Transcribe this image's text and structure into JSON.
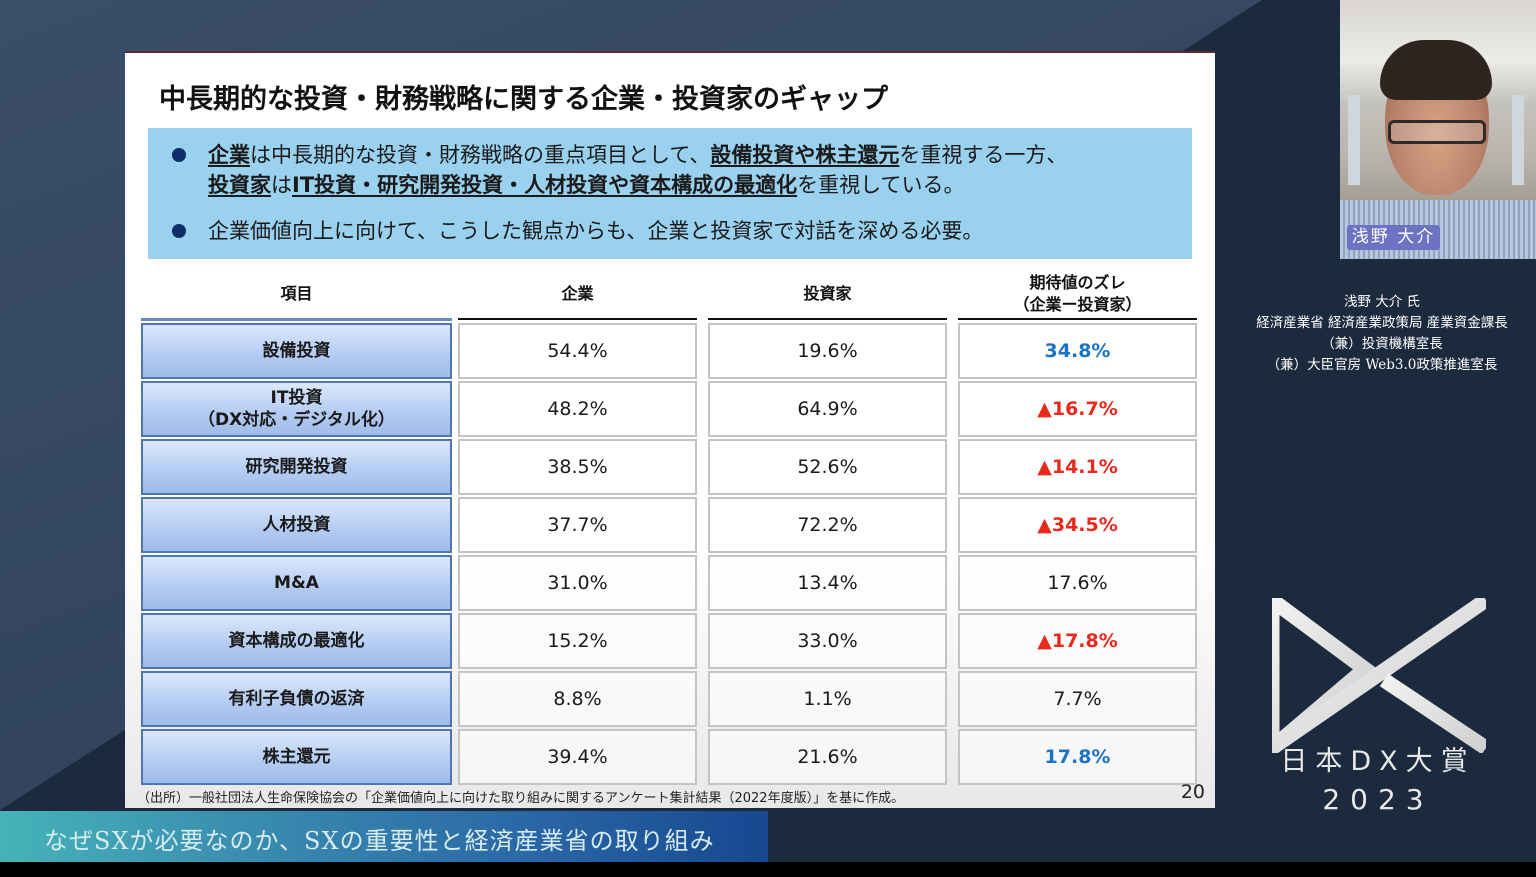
{
  "slide": {
    "title": "中長期的な投資・財務戦略に関する企業・投資家のギャップ",
    "summary": {
      "bullet1_part1": "企業",
      "bullet1_part2": "は中長期的な投資・財務戦略の重点項目として、",
      "bullet1_part3": "設備投資や株主還元",
      "bullet1_part4": "を重視する一方、",
      "bullet1_part5": "投資家",
      "bullet1_part6": "は",
      "bullet1_part7": "IT投資・研究開発投資・人材投資や資本構成の最適化",
      "bullet1_part8": "を重視している。",
      "bullet2": "企業価値向上に向けて、こうした観点からも、企業と投資家で対話を深める必要。"
    },
    "table": {
      "headers": {
        "item": "項目",
        "company": "企業",
        "investor": "投資家",
        "gap_line1": "期待値のズレ",
        "gap_line2": "（企業ー投資家）"
      },
      "rows": [
        {
          "label": "設備投資",
          "label2": "",
          "company": "54.4%",
          "investor": "19.6%",
          "gap": "34.8%",
          "gap_type": "pos"
        },
        {
          "label": "IT投資",
          "label2": "（DX対応・デジタル化）",
          "company": "48.2%",
          "investor": "64.9%",
          "gap": "▲16.7%",
          "gap_type": "neg"
        },
        {
          "label": "研究開発投資",
          "label2": "",
          "company": "38.5%",
          "investor": "52.6%",
          "gap": "▲14.1%",
          "gap_type": "neg"
        },
        {
          "label": "人材投資",
          "label2": "",
          "company": "37.7%",
          "investor": "72.2%",
          "gap": "▲34.5%",
          "gap_type": "neg"
        },
        {
          "label": "M&A",
          "label2": "",
          "company": "31.0%",
          "investor": "13.4%",
          "gap": "17.6%",
          "gap_type": "neutral"
        },
        {
          "label": "資本構成の最適化",
          "label2": "",
          "company": "15.2%",
          "investor": "33.0%",
          "gap": "▲17.8%",
          "gap_type": "neg"
        },
        {
          "label": "有利子負債の返済",
          "label2": "",
          "company": "8.8%",
          "investor": "1.1%",
          "gap": "7.7%",
          "gap_type": "neutral"
        },
        {
          "label": "株主還元",
          "label2": "",
          "company": "39.4%",
          "investor": "21.6%",
          "gap": "17.8%",
          "gap_type": "pos"
        }
      ]
    },
    "source": "（出所）一般社団法人生命保険協会の「企業価値向上に向けた取り組みに関するアンケート集計結果（2022年度版）」を基に作成。",
    "page_number": "20"
  },
  "webcam": {
    "name_tag": "浅野 大介"
  },
  "speaker": {
    "line1": "浅野 大介 氏",
    "line2": "経済産業省 経済産業政策局 産業資金課長",
    "line3": "（兼）投資機構室長",
    "line4": "（兼）大臣官房 Web3.0政策推進室長"
  },
  "logo": {
    "text": "日本DX大賞",
    "year": "2023"
  },
  "lower_third": {
    "title": "なぜSXが必要なのか、SXの重要性と経済産業省の取り組み"
  },
  "colors": {
    "gap_positive": "#1a73c4",
    "gap_negative": "#e8291c",
    "summary_bg": "#99d1ee",
    "label_border": "#4f76b2"
  }
}
